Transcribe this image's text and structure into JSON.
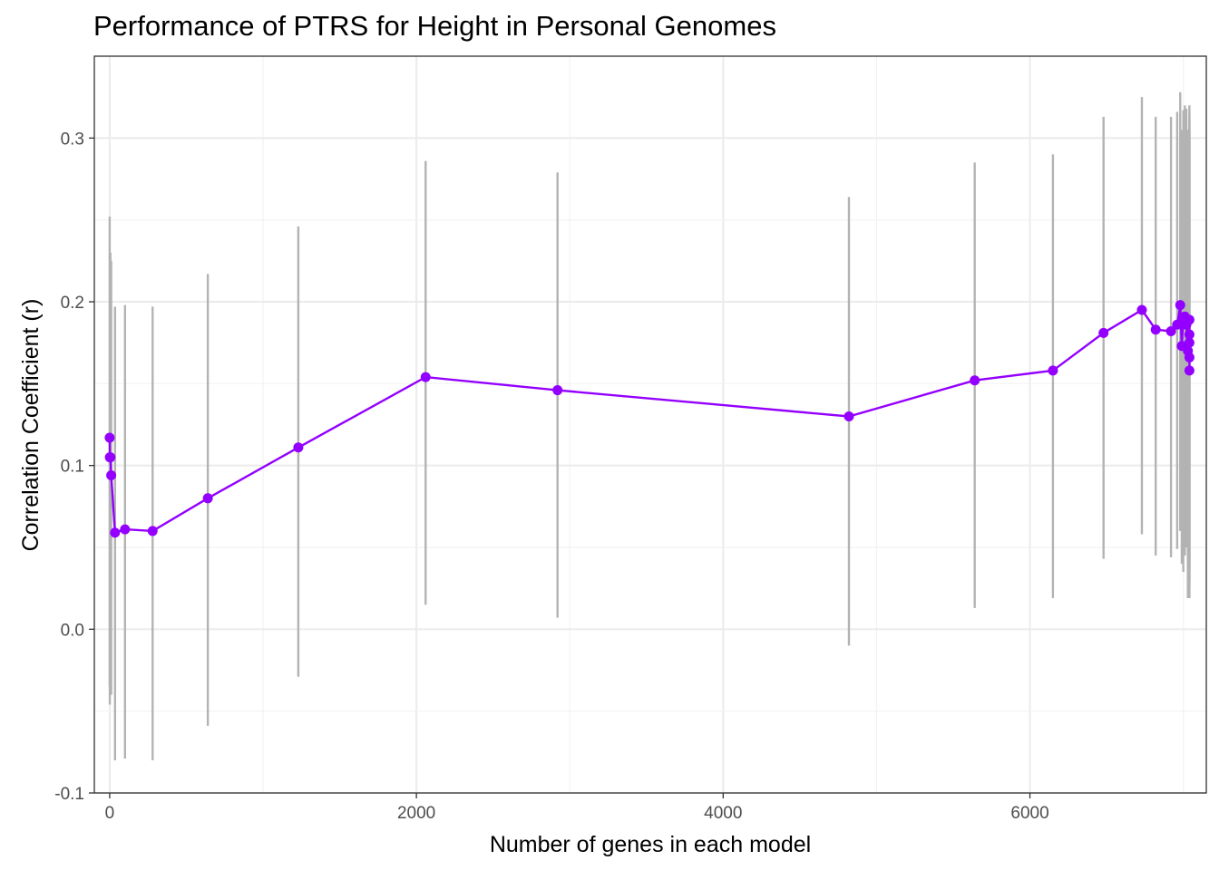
{
  "chart_data": {
    "type": "line",
    "title": "Performance of PTRS for Height in Personal Genomes",
    "xlabel": "Number of genes in each model",
    "ylabel": "Correlation Coefficient (r)",
    "xlim": [
      -100,
      7150
    ],
    "ylim": [
      -0.1,
      0.35
    ],
    "x_ticks": [
      0,
      2000,
      4000,
      6000
    ],
    "x_tick_labels": [
      "0",
      "2000",
      "4000",
      "6000"
    ],
    "y_ticks": [
      -0.1,
      0.0,
      0.1,
      0.2,
      0.3
    ],
    "y_tick_labels": [
      "-0.1",
      "0.0",
      "0.1",
      "0.2",
      "0.3"
    ],
    "grid": true,
    "legend": "none",
    "colors": {
      "line": "#9400ff",
      "point": "#9400ff",
      "errorbar": "#b3b3b3"
    },
    "series": [
      {
        "x": [
          0,
          1,
          5,
          10,
          35,
          100,
          280,
          640,
          1230,
          2060,
          2920,
          4820,
          5640,
          6150,
          6480,
          6730,
          6820,
          6920,
          6960,
          6980,
          6990,
          7000,
          7010,
          7020,
          7030,
          7040,
          7040,
          7040,
          7040,
          7040
        ],
        "y": [
          0.117,
          0.105,
          0.105,
          0.094,
          0.059,
          0.061,
          0.06,
          0.08,
          0.111,
          0.154,
          0.146,
          0.13,
          0.152,
          0.158,
          0.181,
          0.195,
          0.183,
          0.182,
          0.186,
          0.198,
          0.173,
          0.189,
          0.191,
          0.186,
          0.17,
          0.189,
          0.18,
          0.175,
          0.166,
          0.158
        ],
        "ymin": [
          -0.035,
          -0.046,
          -0.04,
          -0.04,
          -0.08,
          -0.079,
          -0.08,
          -0.059,
          -0.029,
          0.015,
          0.007,
          -0.01,
          0.013,
          0.019,
          0.043,
          0.058,
          0.045,
          0.044,
          0.049,
          0.06,
          0.04,
          0.035,
          0.045,
          0.05,
          0.019,
          0.04,
          0.035,
          0.03,
          0.025,
          0.019
        ],
        "ymax": [
          0.252,
          0.23,
          0.23,
          0.225,
          0.197,
          0.198,
          0.197,
          0.217,
          0.246,
          0.286,
          0.279,
          0.264,
          0.285,
          0.29,
          0.313,
          0.325,
          0.313,
          0.313,
          0.316,
          0.328,
          0.305,
          0.317,
          0.32,
          0.318,
          0.305,
          0.32,
          0.315,
          0.31,
          0.305,
          0.3
        ]
      }
    ]
  }
}
